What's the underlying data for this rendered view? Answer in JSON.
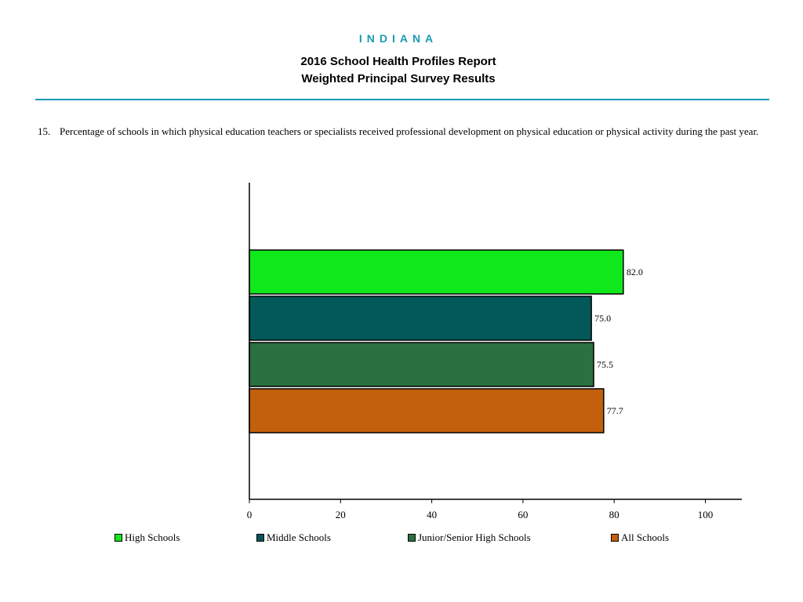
{
  "header": {
    "state": "INDIANA",
    "title_line1": "2016 School Health Profiles Report",
    "title_line2": "Weighted Principal Survey Results"
  },
  "question": {
    "number": "15.",
    "text": "Percentage of schools in which physical education teachers or specialists received professional development on physical education or physical activity during the past year."
  },
  "colors": {
    "accent": "#1a9bb5"
  },
  "chart_data": {
    "type": "bar",
    "orientation": "horizontal",
    "title": "",
    "xlabel": "",
    "ylabel": "",
    "xlim": [
      0,
      108
    ],
    "xticks": [
      0,
      20,
      40,
      60,
      80,
      100
    ],
    "grid": false,
    "legend_position": "bottom",
    "series": [
      {
        "name": "High Schools",
        "value": 82.0,
        "label": "82.0",
        "color": "#11e81b"
      },
      {
        "name": "Middle Schools",
        "value": 75.0,
        "label": "75.0",
        "color": "#03585a"
      },
      {
        "name": "Junior/Senior High Schools",
        "value": 75.5,
        "label": "75.5",
        "color": "#2b7041"
      },
      {
        "name": "All Schools",
        "value": 77.7,
        "label": "77.7",
        "color": "#c2600c"
      }
    ]
  }
}
